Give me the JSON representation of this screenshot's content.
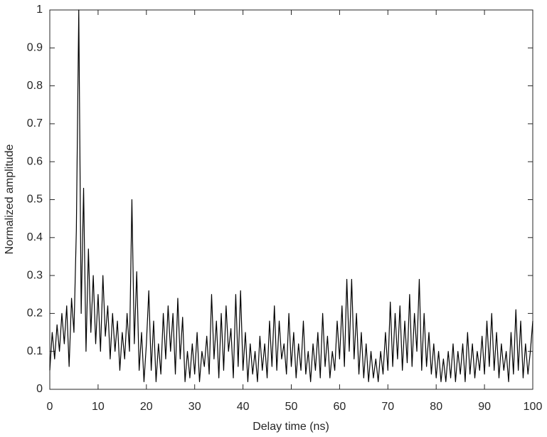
{
  "chart_data": {
    "type": "line",
    "xlabel": "Delay time (ns)",
    "ylabel": "Normalized amplitude",
    "color": "#000000",
    "xlim": [
      0,
      100
    ],
    "xticks": [
      0,
      10,
      20,
      30,
      40,
      50,
      60,
      70,
      80,
      90,
      100
    ],
    "ylim": [
      0,
      1
    ],
    "yticks": [
      0,
      0.1,
      0.2,
      0.3,
      0.4,
      0.5,
      0.6,
      0.7,
      0.8,
      0.9,
      1
    ],
    "x": [
      0,
      0.5,
      1,
      1.5,
      2,
      2.5,
      3,
      3.5,
      4,
      4.5,
      5,
      5.5,
      6,
      6.5,
      7,
      7.5,
      8,
      8.5,
      9,
      9.5,
      10,
      10.5,
      11,
      11.5,
      12,
      12.5,
      13,
      13.5,
      14,
      14.5,
      15,
      15.5,
      16,
      16.5,
      17,
      17.5,
      18,
      18.5,
      19,
      19.5,
      20,
      20.5,
      21,
      21.5,
      22,
      22.5,
      23,
      23.5,
      24,
      24.5,
      25,
      25.5,
      26,
      26.5,
      27,
      27.5,
      28,
      28.5,
      29,
      29.5,
      30,
      30.5,
      31,
      31.5,
      32,
      32.5,
      33,
      33.5,
      34,
      34.5,
      35,
      35.5,
      36,
      36.5,
      37,
      37.5,
      38,
      38.5,
      39,
      39.5,
      40,
      40.5,
      41,
      41.5,
      42,
      42.5,
      43,
      43.5,
      44,
      44.5,
      45,
      45.5,
      46,
      46.5,
      47,
      47.5,
      48,
      48.5,
      49,
      49.5,
      50,
      50.5,
      51,
      51.5,
      52,
      52.5,
      53,
      53.5,
      54,
      54.5,
      55,
      55.5,
      56,
      56.5,
      57,
      57.5,
      58,
      58.5,
      59,
      59.5,
      60,
      60.5,
      61,
      61.5,
      62,
      62.5,
      63,
      63.5,
      64,
      64.5,
      65,
      65.5,
      66,
      66.5,
      67,
      67.5,
      68,
      68.5,
      69,
      69.5,
      70,
      70.5,
      71,
      71.5,
      72,
      72.5,
      73,
      73.5,
      74,
      74.5,
      75,
      75.5,
      76,
      76.5,
      77,
      77.5,
      78,
      78.5,
      79,
      79.5,
      80,
      80.5,
      81,
      81.5,
      82,
      82.5,
      83,
      83.5,
      84,
      84.5,
      85,
      85.5,
      86,
      86.5,
      87,
      87.5,
      88,
      88.5,
      89,
      89.5,
      90,
      90.5,
      91,
      91.5,
      92,
      92.5,
      93,
      93.5,
      94,
      94.5,
      95,
      95.5,
      96,
      96.5,
      97,
      97.5,
      98,
      98.5,
      99,
      99.5,
      100
    ],
    "values": [
      0.05,
      0.15,
      0.08,
      0.17,
      0.1,
      0.2,
      0.12,
      0.22,
      0.06,
      0.24,
      0.15,
      0.42,
      1.0,
      0.2,
      0.53,
      0.1,
      0.37,
      0.15,
      0.3,
      0.12,
      0.25,
      0.1,
      0.3,
      0.14,
      0.22,
      0.08,
      0.2,
      0.1,
      0.18,
      0.05,
      0.15,
      0.08,
      0.2,
      0.1,
      0.5,
      0.12,
      0.31,
      0.05,
      0.15,
      0.02,
      0.12,
      0.26,
      0.05,
      0.18,
      0.02,
      0.12,
      0.04,
      0.2,
      0.08,
      0.22,
      0.1,
      0.2,
      0.04,
      0.24,
      0.08,
      0.19,
      0.02,
      0.1,
      0.03,
      0.12,
      0.04,
      0.15,
      0.02,
      0.1,
      0.06,
      0.14,
      0.04,
      0.25,
      0.08,
      0.18,
      0.03,
      0.2,
      0.05,
      0.22,
      0.1,
      0.16,
      0.03,
      0.25,
      0.06,
      0.26,
      0.05,
      0.15,
      0.02,
      0.12,
      0.04,
      0.1,
      0.02,
      0.14,
      0.05,
      0.12,
      0.03,
      0.18,
      0.06,
      0.22,
      0.05,
      0.18,
      0.08,
      0.12,
      0.04,
      0.2,
      0.06,
      0.15,
      0.03,
      0.12,
      0.05,
      0.18,
      0.04,
      0.1,
      0.02,
      0.12,
      0.05,
      0.15,
      0.03,
      0.2,
      0.06,
      0.14,
      0.03,
      0.1,
      0.05,
      0.18,
      0.08,
      0.22,
      0.06,
      0.29,
      0.1,
      0.29,
      0.08,
      0.2,
      0.04,
      0.15,
      0.03,
      0.12,
      0.02,
      0.1,
      0.03,
      0.08,
      0.02,
      0.1,
      0.04,
      0.15,
      0.05,
      0.23,
      0.06,
      0.2,
      0.08,
      0.22,
      0.05,
      0.18,
      0.07,
      0.25,
      0.06,
      0.2,
      0.1,
      0.29,
      0.05,
      0.2,
      0.06,
      0.15,
      0.04,
      0.12,
      0.03,
      0.1,
      0.02,
      0.08,
      0.02,
      0.1,
      0.03,
      0.12,
      0.02,
      0.1,
      0.04,
      0.12,
      0.02,
      0.15,
      0.04,
      0.12,
      0.03,
      0.1,
      0.05,
      0.14,
      0.04,
      0.18,
      0.06,
      0.2,
      0.05,
      0.15,
      0.03,
      0.12,
      0.05,
      0.1,
      0.02,
      0.15,
      0.04,
      0.21,
      0.05,
      0.18,
      0.03,
      0.12,
      0.04,
      0.1,
      0.18
    ]
  }
}
